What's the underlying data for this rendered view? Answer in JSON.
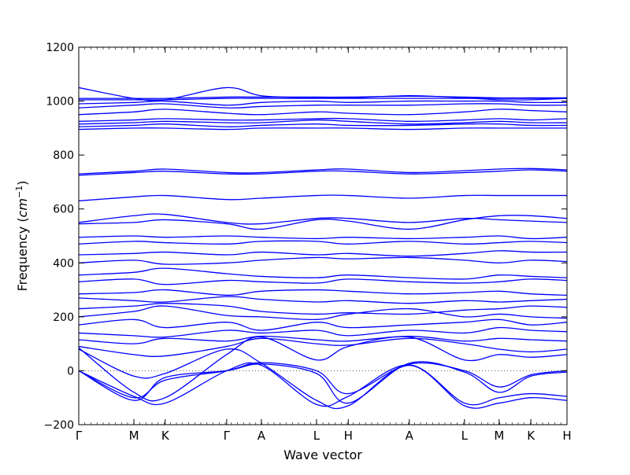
{
  "chart_data": {
    "type": "line",
    "title": "",
    "xlabel": "Wave vector",
    "ylabel_main": "Frequency (",
    "ylabel_unit": "cm",
    "ylabel_exp": "−1",
    "ylabel_close": ")",
    "ylim": [
      -200,
      1200
    ],
    "yticks": [
      -200,
      0,
      200,
      400,
      600,
      800,
      1000,
      1200
    ],
    "grid": false,
    "zero_line": true,
    "kpoints": [
      {
        "label": "Γ",
        "x": 0.0
      },
      {
        "label": "M",
        "x": 0.113
      },
      {
        "label": "K",
        "x": 0.177
      },
      {
        "label": "Γ",
        "x": 0.303
      },
      {
        "label": "A",
        "x": 0.374
      },
      {
        "label": "L",
        "x": 0.487
      },
      {
        "label": "H",
        "x": 0.552
      },
      {
        "label": "A",
        "x": 0.677
      },
      {
        "label": "L",
        "x": 0.79
      },
      {
        "label": "M",
        "x": 0.861
      },
      {
        "label": "K",
        "x": 0.926
      },
      {
        "label": "H",
        "x": 1.0
      }
    ],
    "x_samples": [
      0.0,
      0.113,
      0.177,
      0.303,
      0.374,
      0.487,
      0.552,
      0.677,
      0.79,
      0.861,
      0.926,
      1.0
    ],
    "series_color": "#0000ff",
    "series": [
      {
        "values": [
          0,
          -100,
          -35,
          0,
          30,
          0,
          -85,
          25,
          0,
          -60,
          -15,
          0
        ]
      },
      {
        "values": [
          0,
          -110,
          -25,
          0,
          25,
          -10,
          -120,
          28,
          -5,
          -80,
          -20,
          -5
        ]
      },
      {
        "values": [
          0,
          -95,
          -120,
          0,
          20,
          -125,
          -95,
          22,
          -120,
          -100,
          -85,
          -95
        ]
      },
      {
        "values": [
          80,
          -20,
          -10,
          80,
          28,
          -110,
          -130,
          20,
          -130,
          -120,
          -100,
          -110
        ]
      },
      {
        "values": [
          85,
          -80,
          -100,
          60,
          125,
          40,
          90,
          125,
          40,
          60,
          50,
          60
        ]
      },
      {
        "values": [
          90,
          60,
          55,
          90,
          120,
          100,
          95,
          120,
          100,
          80,
          70,
          80
        ]
      },
      {
        "values": [
          115,
          100,
          120,
          110,
          128,
          115,
          110,
          128,
          110,
          120,
          115,
          110
        ]
      },
      {
        "values": [
          140,
          130,
          125,
          150,
          140,
          150,
          130,
          150,
          140,
          160,
          150,
          145
        ]
      },
      {
        "values": [
          170,
          190,
          160,
          180,
          150,
          180,
          160,
          170,
          180,
          190,
          170,
          180
        ]
      },
      {
        "values": [
          200,
          220,
          240,
          205,
          200,
          190,
          210,
          230,
          200,
          210,
          200,
          195
        ]
      },
      {
        "values": [
          230,
          240,
          250,
          240,
          220,
          210,
          215,
          210,
          225,
          230,
          240,
          235
        ]
      },
      {
        "values": [
          270,
          260,
          255,
          275,
          265,
          255,
          260,
          250,
          260,
          255,
          260,
          265
        ]
      },
      {
        "values": [
          285,
          290,
          300,
          280,
          295,
          300,
          295,
          285,
          290,
          295,
          285,
          280
        ]
      },
      {
        "values": [
          330,
          340,
          320,
          335,
          330,
          325,
          340,
          330,
          325,
          330,
          340,
          335
        ]
      },
      {
        "values": [
          355,
          365,
          380,
          360,
          350,
          345,
          355,
          345,
          340,
          355,
          350,
          345
        ]
      },
      {
        "values": [
          400,
          410,
          395,
          400,
          410,
          420,
          415,
          420,
          410,
          400,
          410,
          405
        ]
      },
      {
        "values": [
          430,
          435,
          440,
          430,
          440,
          430,
          435,
          425,
          435,
          445,
          440,
          440
        ]
      },
      {
        "values": [
          470,
          480,
          475,
          470,
          480,
          480,
          470,
          480,
          470,
          475,
          480,
          475
        ]
      },
      {
        "values": [
          495,
          500,
          495,
          500,
          495,
          490,
          495,
          490,
          495,
          500,
          490,
          495
        ]
      },
      {
        "values": [
          545,
          550,
          560,
          545,
          525,
          560,
          555,
          525,
          560,
          575,
          575,
          565
        ]
      },
      {
        "values": [
          550,
          575,
          580,
          550,
          545,
          565,
          565,
          550,
          565,
          560,
          555,
          550
        ]
      },
      {
        "values": [
          630,
          645,
          650,
          635,
          640,
          650,
          650,
          640,
          650,
          650,
          650,
          650
        ]
      },
      {
        "values": [
          725,
          735,
          740,
          730,
          730,
          740,
          740,
          730,
          735,
          740,
          745,
          740
        ]
      },
      {
        "values": [
          730,
          740,
          748,
          735,
          735,
          745,
          748,
          735,
          742,
          748,
          750,
          745
        ]
      },
      {
        "values": [
          895,
          900,
          900,
          895,
          900,
          900,
          900,
          895,
          900,
          900,
          900,
          900
        ]
      },
      {
        "values": [
          905,
          910,
          915,
          905,
          910,
          915,
          910,
          910,
          915,
          915,
          910,
          910
        ]
      },
      {
        "values": [
          915,
          920,
          925,
          920,
          920,
          930,
          925,
          915,
          920,
          925,
          920,
          920
        ]
      },
      {
        "values": [
          925,
          930,
          935,
          930,
          930,
          935,
          935,
          925,
          930,
          935,
          930,
          935
        ]
      },
      {
        "values": [
          950,
          960,
          970,
          955,
          950,
          960,
          955,
          950,
          960,
          970,
          965,
          960
        ]
      },
      {
        "values": [
          975,
          985,
          990,
          975,
          980,
          985,
          985,
          985,
          990,
          990,
          985,
          985
        ]
      },
      {
        "values": [
          990,
          995,
          1000,
          985,
          995,
          1000,
          995,
          1000,
          1000,
          1000,
          995,
          995
        ]
      },
      {
        "values": [
          1005,
          1005,
          1005,
          1010,
          1010,
          1010,
          1010,
          1010,
          1010,
          1010,
          1010,
          1010
        ]
      },
      {
        "values": [
          1010,
          1010,
          1010,
          1015,
          1015,
          1015,
          1015,
          1018,
          1015,
          1012,
          1012,
          1012
        ]
      },
      {
        "values": [
          1050,
          1010,
          1005,
          1050,
          1020,
          1012,
          1012,
          1020,
          1012,
          1005,
          1005,
          1010
        ]
      }
    ]
  }
}
